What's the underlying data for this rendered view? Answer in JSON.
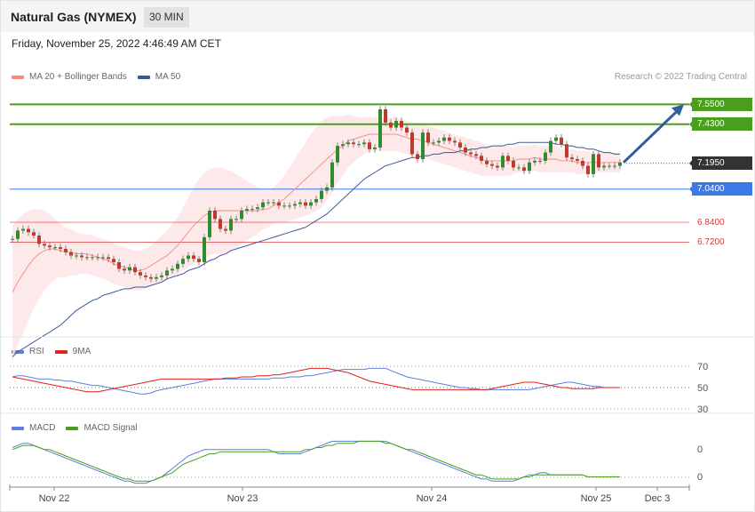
{
  "header": {
    "title": "Natural Gas (NYMEX)",
    "timeframe": "30 MIN"
  },
  "subheader": {
    "datetime": "Friday, November 25, 2022 4:46:49 AM CET"
  },
  "legend_main": [
    {
      "label": "MA 20 + Bollinger Bands",
      "color": "#f28b82"
    },
    {
      "label": "MA 50",
      "color": "#3b5998"
    }
  ],
  "credit": "Research © 2022 Trading Central",
  "legend_rsi": [
    {
      "label": "RSI",
      "color": "#5b7fdb"
    },
    {
      "label": "9MA",
      "color": "#e0201b"
    }
  ],
  "legend_macd": [
    {
      "label": "MACD",
      "color": "#5b7fdb"
    },
    {
      "label": "MACD Signal",
      "color": "#4aa01c"
    }
  ],
  "colors": {
    "resistance": "#4aa01c",
    "support": "#3c78e6",
    "red_level": "#d73a3a",
    "current": "#333333",
    "up": "#2e8b2e",
    "down": "#c0392b",
    "arrow": "#2f5d9e"
  },
  "chart_data": [
    {
      "type": "candlestick",
      "title": "Natural Gas (NYMEX)",
      "ylim": [
        6.22,
        7.6
      ],
      "x_ticks": [
        "Nov 22",
        "Nov 23",
        "Nov 24",
        "Nov 25",
        "Dec 3"
      ],
      "price_levels": [
        {
          "value": 7.55,
          "label": "7.5500",
          "kind": "resistance"
        },
        {
          "value": 7.43,
          "label": "7.4300",
          "kind": "resistance"
        },
        {
          "value": 7.195,
          "label": "7.1950",
          "kind": "current"
        },
        {
          "value": 7.04,
          "label": "7.0400",
          "kind": "support"
        },
        {
          "value": 6.84,
          "label": "6.8400",
          "kind": "minor"
        },
        {
          "value": 6.72,
          "label": "6.7200",
          "kind": "minor"
        }
      ],
      "close": [
        6.74,
        6.79,
        6.8,
        6.78,
        6.76,
        6.71,
        6.7,
        6.69,
        6.69,
        6.68,
        6.66,
        6.64,
        6.64,
        6.63,
        6.63,
        6.63,
        6.63,
        6.63,
        6.62,
        6.6,
        6.56,
        6.55,
        6.57,
        6.54,
        6.52,
        6.51,
        6.5,
        6.51,
        6.52,
        6.55,
        6.56,
        6.59,
        6.62,
        6.64,
        6.62,
        6.6,
        6.75,
        6.91,
        6.86,
        6.8,
        6.79,
        6.86,
        6.86,
        6.91,
        6.92,
        6.92,
        6.93,
        6.96,
        6.96,
        6.96,
        6.94,
        6.94,
        6.94,
        6.95,
        6.96,
        6.94,
        6.96,
        6.98,
        7.03,
        7.05,
        7.2,
        7.3,
        7.31,
        7.32,
        7.31,
        7.31,
        7.32,
        7.28,
        7.29,
        7.52,
        7.44,
        7.41,
        7.45,
        7.41,
        7.38,
        7.25,
        7.22,
        7.38,
        7.32,
        7.32,
        7.33,
        7.35,
        7.33,
        7.32,
        7.29,
        7.26,
        7.25,
        7.24,
        7.21,
        7.19,
        7.18,
        7.17,
        7.24,
        7.21,
        7.17,
        7.17,
        7.15,
        7.2,
        7.21,
        7.21,
        7.26,
        7.33,
        7.35,
        7.31,
        7.23,
        7.22,
        7.21,
        7.18,
        7.13,
        7.25,
        7.17,
        7.18,
        7.18,
        7.18,
        7.2
      ],
      "ma50": [
        6.03,
        6.06,
        6.08,
        6.1,
        6.12,
        6.14,
        6.16,
        6.18,
        6.2,
        6.22,
        6.25,
        6.28,
        6.31,
        6.33,
        6.35,
        6.37,
        6.38,
        6.4,
        6.41,
        6.42,
        6.43,
        6.44,
        6.44,
        6.45,
        6.45,
        6.45,
        6.46,
        6.47,
        6.48,
        6.5,
        6.51,
        6.52,
        6.53,
        6.55,
        6.56,
        6.57,
        6.59,
        6.61,
        6.62,
        6.64,
        6.65,
        6.67,
        6.68,
        6.69,
        6.7,
        6.71,
        6.72,
        6.73,
        6.74,
        6.75,
        6.76,
        6.77,
        6.78,
        6.79,
        6.8,
        6.81,
        6.83,
        6.85,
        6.87,
        6.89,
        6.92,
        6.95,
        6.98,
        7.01,
        7.04,
        7.07,
        7.1,
        7.12,
        7.14,
        7.16,
        7.18,
        7.19,
        7.2,
        7.21,
        7.22,
        7.23,
        7.23,
        7.24,
        7.24,
        7.25,
        7.25,
        7.26,
        7.26,
        7.26,
        7.27,
        7.27,
        7.28,
        7.28,
        7.29,
        7.29,
        7.3,
        7.3,
        7.3,
        7.31,
        7.31,
        7.32,
        7.32,
        7.32,
        7.32,
        7.32,
        7.32,
        7.32,
        7.31,
        7.31,
        7.3,
        7.3,
        7.29,
        7.29,
        7.28,
        7.28,
        7.27,
        7.26,
        7.26,
        7.25,
        7.25
      ],
      "ma20": [
        6.42,
        6.48,
        6.53,
        6.58,
        6.62,
        6.65,
        6.67,
        6.68,
        6.68,
        6.67,
        6.66,
        6.66,
        6.65,
        6.65,
        6.65,
        6.64,
        6.63,
        6.62,
        6.61,
        6.59,
        6.58,
        6.57,
        6.56,
        6.55,
        6.55,
        6.56,
        6.58,
        6.6,
        6.62,
        6.64,
        6.67,
        6.7,
        6.74,
        6.78,
        6.82,
        6.85,
        6.88,
        6.9,
        6.91,
        6.91,
        6.91,
        6.91,
        6.91,
        6.91,
        6.91,
        6.91,
        6.91,
        6.92,
        6.92,
        6.94,
        6.96,
        6.98,
        7.01,
        7.04,
        7.07,
        7.1,
        7.13,
        7.16,
        7.19,
        7.22,
        7.25,
        7.28,
        7.3,
        7.33,
        7.34,
        7.35,
        7.36,
        7.37,
        7.37,
        7.37,
        7.37,
        7.37,
        7.37,
        7.36,
        7.35,
        7.34,
        7.34,
        7.33,
        7.32,
        7.31,
        7.3,
        7.29,
        7.28,
        7.27,
        7.26,
        7.25,
        7.24,
        7.23,
        7.22,
        7.21,
        7.21,
        7.21,
        7.21,
        7.21,
        7.21,
        7.22,
        7.22,
        7.22,
        7.23,
        7.22,
        7.22,
        7.22,
        7.22,
        7.21,
        7.21,
        7.21,
        7.2,
        7.2,
        7.2,
        7.2,
        7.2,
        7.2,
        7.2,
        7.2,
        7.2
      ],
      "bb_half_width": [
        0.4,
        0.38,
        0.36,
        0.33,
        0.3,
        0.27,
        0.24,
        0.21,
        0.18,
        0.16,
        0.15,
        0.14,
        0.13,
        0.12,
        0.12,
        0.12,
        0.12,
        0.12,
        0.12,
        0.12,
        0.12,
        0.12,
        0.12,
        0.12,
        0.12,
        0.12,
        0.12,
        0.13,
        0.14,
        0.15,
        0.16,
        0.17,
        0.19,
        0.21,
        0.23,
        0.25,
        0.26,
        0.26,
        0.26,
        0.26,
        0.25,
        0.24,
        0.22,
        0.2,
        0.18,
        0.16,
        0.14,
        0.12,
        0.11,
        0.11,
        0.12,
        0.14,
        0.16,
        0.18,
        0.2,
        0.22,
        0.24,
        0.25,
        0.26,
        0.25,
        0.23,
        0.2,
        0.18,
        0.16,
        0.14,
        0.12,
        0.11,
        0.1,
        0.1,
        0.1,
        0.1,
        0.1,
        0.1,
        0.1,
        0.1,
        0.1,
        0.1,
        0.1,
        0.1,
        0.1,
        0.1,
        0.1,
        0.1,
        0.1,
        0.1,
        0.1,
        0.1,
        0.1,
        0.1,
        0.09,
        0.09,
        0.09,
        0.09,
        0.09,
        0.08,
        0.08,
        0.08,
        0.08,
        0.08,
        0.08,
        0.08,
        0.08,
        0.08,
        0.07,
        0.07,
        0.07,
        0.07,
        0.07,
        0.07,
        0.06,
        0.06,
        0.06,
        0.06,
        0.06,
        0.06
      ],
      "forecast_target": 7.55
    },
    {
      "type": "line",
      "title": "RSI",
      "ylim": [
        25,
        75
      ],
      "y_ticks": [
        70,
        50,
        30
      ],
      "series": [
        {
          "name": "RSI",
          "values": [
            60,
            61,
            61,
            60,
            59,
            58,
            58,
            58,
            57,
            57,
            56,
            56,
            55,
            54,
            53,
            52,
            52,
            51,
            50,
            49,
            48,
            47,
            46,
            45,
            44,
            44,
            45,
            47,
            48,
            49,
            50,
            51,
            52,
            53,
            54,
            55,
            56,
            57,
            58,
            58,
            58,
            58,
            58,
            58,
            58,
            58,
            58,
            58,
            58,
            59,
            59,
            59,
            60,
            60,
            60,
            61,
            61,
            62,
            63,
            64,
            65,
            66,
            67,
            67,
            67,
            67,
            67,
            68,
            68,
            68,
            68,
            66,
            64,
            62,
            60,
            59,
            58,
            57,
            56,
            55,
            54,
            53,
            52,
            51,
            50,
            50,
            49,
            49,
            48,
            48,
            48,
            48,
            48,
            48,
            48,
            48,
            48,
            48,
            49,
            50,
            51,
            52,
            53,
            54,
            55,
            55,
            54,
            53,
            52,
            51,
            51,
            50,
            50,
            50,
            50
          ]
        },
        {
          "name": "9MA",
          "values": [
            60,
            59,
            58,
            57,
            56,
            55,
            54,
            53,
            52,
            51,
            50,
            49,
            48,
            47,
            46,
            46,
            46,
            47,
            48,
            49,
            50,
            51,
            52,
            53,
            54,
            55,
            56,
            57,
            58,
            58,
            58,
            58,
            58,
            58,
            58,
            58,
            58,
            58,
            58,
            58,
            59,
            59,
            59,
            60,
            60,
            60,
            61,
            61,
            61,
            62,
            62,
            63,
            64,
            65,
            66,
            67,
            68,
            68,
            68,
            68,
            67,
            66,
            65,
            64,
            62,
            60,
            58,
            56,
            55,
            54,
            53,
            52,
            51,
            50,
            49,
            48,
            48,
            48,
            48,
            48,
            48,
            48,
            48,
            48,
            48,
            48,
            48,
            48,
            48,
            48,
            49,
            50,
            51,
            52,
            53,
            54,
            55,
            55,
            55,
            54,
            53,
            52,
            51,
            50,
            50,
            49,
            49,
            49,
            49,
            49,
            50,
            50,
            50,
            50,
            50
          ]
        }
      ]
    },
    {
      "type": "line",
      "title": "MACD",
      "y_ticks": [
        "0",
        "0"
      ],
      "series": [
        {
          "name": "MACD",
          "values": [
            0.06,
            0.07,
            0.08,
            0.08,
            0.07,
            0.06,
            0.05,
            0.04,
            0.03,
            0.02,
            0.01,
            0.0,
            -0.01,
            -0.02,
            -0.03,
            -0.04,
            -0.05,
            -0.06,
            -0.07,
            -0.08,
            -0.09,
            -0.1,
            -0.1,
            -0.11,
            -0.11,
            -0.11,
            -0.1,
            -0.09,
            -0.08,
            -0.06,
            -0.04,
            -0.02,
            0.0,
            0.02,
            0.03,
            0.04,
            0.05,
            0.05,
            0.05,
            0.05,
            0.05,
            0.05,
            0.05,
            0.05,
            0.05,
            0.05,
            0.05,
            0.05,
            0.05,
            0.04,
            0.03,
            0.03,
            0.03,
            0.03,
            0.03,
            0.04,
            0.05,
            0.06,
            0.07,
            0.08,
            0.09,
            0.09,
            0.09,
            0.09,
            0.09,
            0.09,
            0.09,
            0.09,
            0.09,
            0.09,
            0.09,
            0.08,
            0.07,
            0.06,
            0.05,
            0.04,
            0.03,
            0.02,
            0.01,
            0.0,
            -0.01,
            -0.02,
            -0.03,
            -0.04,
            -0.05,
            -0.06,
            -0.07,
            -0.08,
            -0.09,
            -0.09,
            -0.1,
            -0.1,
            -0.1,
            -0.1,
            -0.1,
            -0.09,
            -0.08,
            -0.07,
            -0.07,
            -0.06,
            -0.06,
            -0.07,
            -0.07,
            -0.07,
            -0.07,
            -0.07,
            -0.07,
            -0.07,
            -0.08,
            -0.08,
            -0.08,
            -0.08,
            -0.08,
            -0.08,
            -0.08
          ]
        },
        {
          "name": "MACD Signal",
          "values": [
            0.05,
            0.06,
            0.07,
            0.07,
            0.07,
            0.06,
            0.05,
            0.05,
            0.04,
            0.03,
            0.02,
            0.01,
            0.0,
            -0.01,
            -0.02,
            -0.03,
            -0.04,
            -0.05,
            -0.06,
            -0.07,
            -0.08,
            -0.09,
            -0.09,
            -0.1,
            -0.1,
            -0.1,
            -0.1,
            -0.09,
            -0.08,
            -0.07,
            -0.06,
            -0.04,
            -0.02,
            -0.01,
            0.0,
            0.01,
            0.02,
            0.03,
            0.03,
            0.04,
            0.04,
            0.04,
            0.04,
            0.04,
            0.04,
            0.04,
            0.04,
            0.04,
            0.04,
            0.04,
            0.04,
            0.04,
            0.04,
            0.04,
            0.04,
            0.05,
            0.05,
            0.06,
            0.06,
            0.07,
            0.07,
            0.08,
            0.08,
            0.08,
            0.08,
            0.09,
            0.09,
            0.09,
            0.09,
            0.09,
            0.08,
            0.08,
            0.07,
            0.06,
            0.05,
            0.05,
            0.04,
            0.03,
            0.02,
            0.01,
            0.0,
            -0.01,
            -0.02,
            -0.03,
            -0.04,
            -0.05,
            -0.06,
            -0.07,
            -0.07,
            -0.08,
            -0.09,
            -0.09,
            -0.09,
            -0.09,
            -0.09,
            -0.09,
            -0.08,
            -0.08,
            -0.07,
            -0.07,
            -0.07,
            -0.07,
            -0.07,
            -0.07,
            -0.07,
            -0.07,
            -0.07,
            -0.07,
            -0.08,
            -0.08,
            -0.08,
            -0.08,
            -0.08,
            -0.08,
            -0.08
          ]
        }
      ]
    }
  ]
}
